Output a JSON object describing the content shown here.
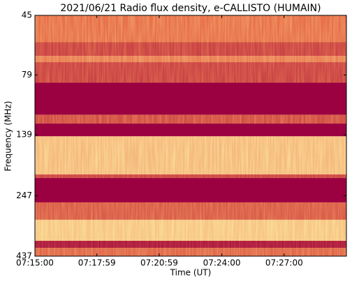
{
  "chart_data": {
    "type": "spectrogram",
    "title": "2021/06/21  Radio flux density, e-CALLISTO (HUMAIN)",
    "x_label": "Time (UT)",
    "y_label": "Frequency (MHz)",
    "xlim": [
      "07:15:00",
      "07:30:00"
    ],
    "xticks": [
      "07:15:00",
      "07:17:59",
      "07:20:59",
      "07:24:00",
      "07:27:00"
    ],
    "ylim": [
      437,
      45
    ],
    "yticks": [
      45,
      79,
      139,
      247,
      437
    ],
    "log_y": true,
    "colormap": [
      "#9b0040",
      "#e8704a",
      "#fde9a0"
    ],
    "bands": [
      {
        "from": 45,
        "to": 58,
        "intensity": 0.5
      },
      {
        "from": 58,
        "to": 66,
        "intensity": 0.3
      },
      {
        "from": 66,
        "to": 70,
        "intensity": 0.55
      },
      {
        "from": 70,
        "to": 85,
        "intensity": 0.3
      },
      {
        "from": 85,
        "to": 115,
        "intensity": 0
      },
      {
        "from": 115,
        "to": 125,
        "intensity": 0.35
      },
      {
        "from": 125,
        "to": 141,
        "intensity": 0
      },
      {
        "from": 141,
        "to": 202,
        "intensity": 0.8
      },
      {
        "from": 202,
        "to": 209,
        "intensity": 0.3
      },
      {
        "from": 209,
        "to": 263,
        "intensity": 0
      },
      {
        "from": 263,
        "to": 310,
        "intensity": 0.4
      },
      {
        "from": 310,
        "to": 378,
        "intensity": 0.85
      },
      {
        "from": 378,
        "to": 404,
        "intensity": 0.1
      },
      {
        "from": 404,
        "to": 437,
        "intensity": 0.45
      }
    ]
  }
}
